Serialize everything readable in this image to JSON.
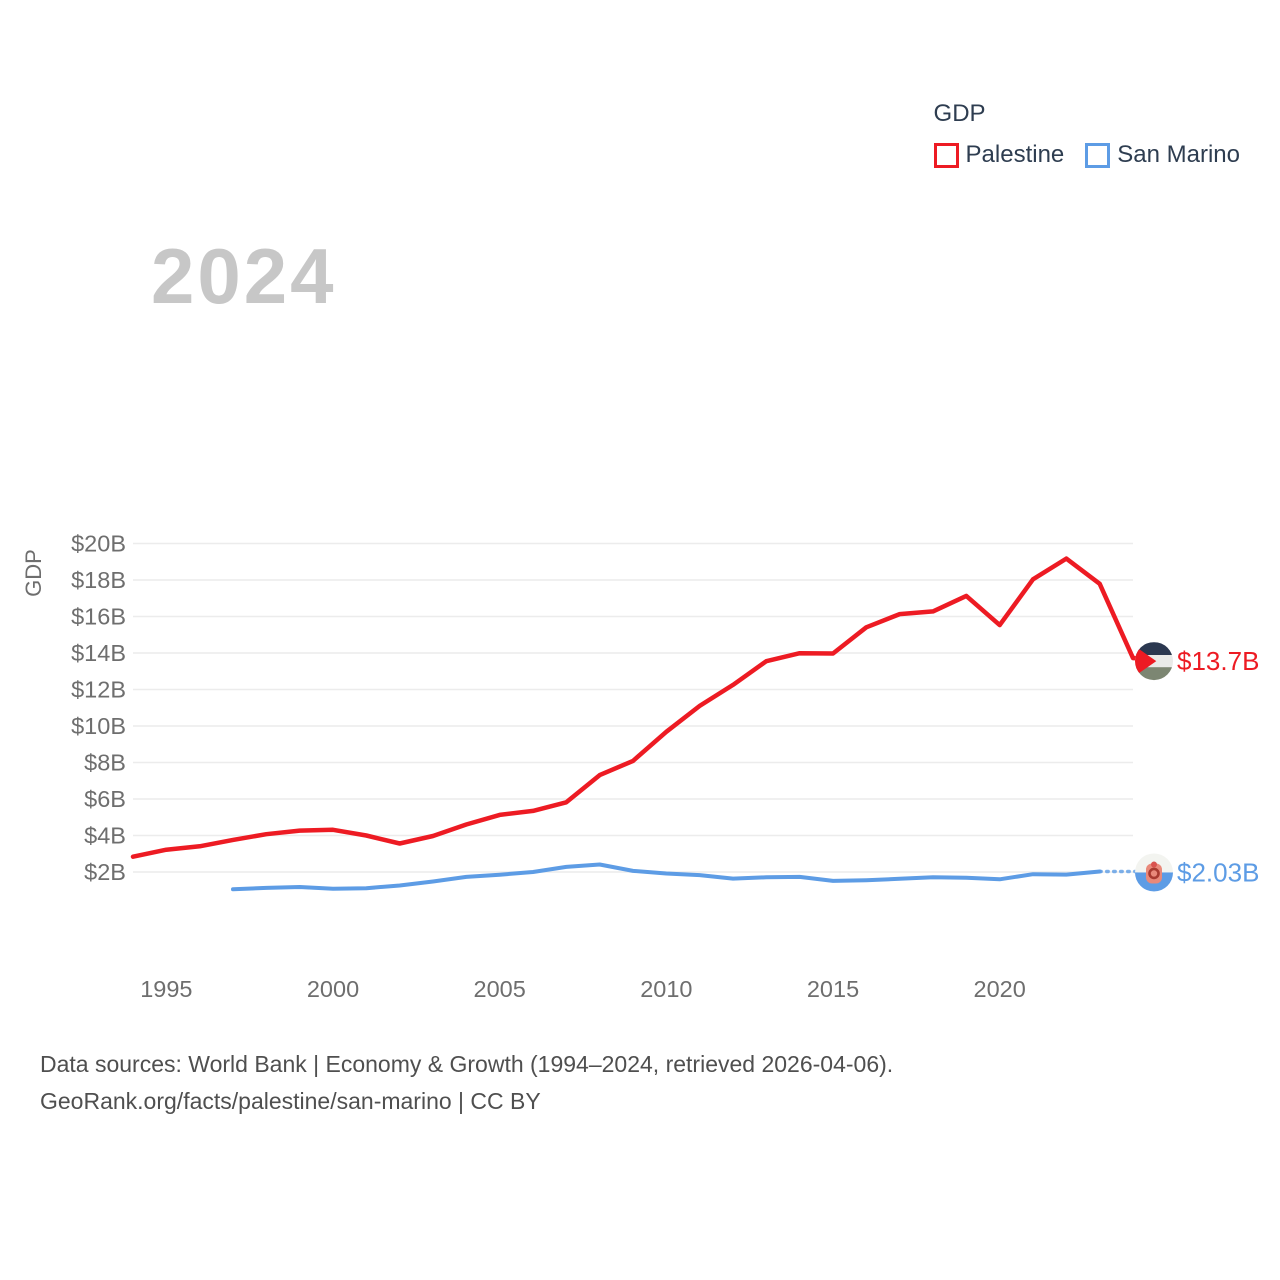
{
  "legend": {
    "title": "GDP",
    "items": [
      {
        "label": "Palestine",
        "color": "#ed1b23"
      },
      {
        "label": "San Marino",
        "color": "#5d9ce5"
      }
    ]
  },
  "watermark": "2024",
  "chart_data": {
    "type": "line",
    "title": "GDP",
    "xlabel": "",
    "ylabel": "GDP",
    "xlim": [
      1994,
      2024
    ],
    "ylim": [
      0,
      20
    ],
    "grid": true,
    "legend_position": "top-right",
    "grid_color": "#ececec",
    "axis_text_color": "#6e6e6e",
    "yticks": [
      {
        "value": 2,
        "label": "$2B"
      },
      {
        "value": 4,
        "label": "$4B"
      },
      {
        "value": 6,
        "label": "$6B"
      },
      {
        "value": 8,
        "label": "$8B"
      },
      {
        "value": 10,
        "label": "$10B"
      },
      {
        "value": 12,
        "label": "$12B"
      },
      {
        "value": 14,
        "label": "$14B"
      },
      {
        "value": 16,
        "label": "$16B"
      },
      {
        "value": 18,
        "label": "$18B"
      },
      {
        "value": 20,
        "label": "$20B"
      }
    ],
    "xticks": [
      {
        "value": 1995,
        "label": "1995"
      },
      {
        "value": 2000,
        "label": "2000"
      },
      {
        "value": 2005,
        "label": "2005"
      },
      {
        "value": 2010,
        "label": "2010"
      },
      {
        "value": 2015,
        "label": "2015"
      },
      {
        "value": 2020,
        "label": "2020"
      }
    ],
    "x": [
      1994,
      1995,
      1996,
      1997,
      1998,
      1999,
      2000,
      2001,
      2002,
      2003,
      2004,
      2005,
      2006,
      2007,
      2008,
      2009,
      2010,
      2011,
      2012,
      2013,
      2014,
      2015,
      2016,
      2017,
      2018,
      2019,
      2020,
      2021,
      2022,
      2023,
      2024
    ],
    "series": [
      {
        "name": "Palestine",
        "color": "#ed1b23",
        "unit": "billion USD",
        "values": [
          2.84,
          3.22,
          3.41,
          3.76,
          4.07,
          4.27,
          4.31,
          4.0,
          3.56,
          3.97,
          4.6,
          5.13,
          5.35,
          5.82,
          7.31,
          8.09,
          9.68,
          11.1,
          12.25,
          13.55,
          13.99,
          13.97,
          15.41,
          16.13,
          16.28,
          17.13,
          15.53,
          18.04,
          19.17,
          17.79,
          13.72
        ],
        "end_label": "$13.7B",
        "flag": "palestine-flag",
        "dashed_from_year": null
      },
      {
        "name": "San Marino",
        "color": "#5d9ce5",
        "unit": "billion USD",
        "values": [
          null,
          null,
          null,
          1.05,
          1.13,
          1.18,
          1.08,
          1.11,
          1.26,
          1.48,
          1.73,
          1.85,
          2.0,
          2.28,
          2.41,
          2.06,
          1.92,
          1.83,
          1.64,
          1.71,
          1.73,
          1.51,
          1.55,
          1.63,
          1.71,
          1.68,
          1.6,
          1.88,
          1.86,
          2.03,
          2.03
        ],
        "end_label": "$2.03B",
        "flag": "san-marino-flag",
        "dashed_from_year": 2023
      }
    ]
  },
  "footer": {
    "line1": "Data sources: World Bank | Economy & Growth (1994–2024, retrieved 2026-04-06).",
    "line2": "GeoRank.org/facts/palestine/san-marino | CC BY"
  }
}
